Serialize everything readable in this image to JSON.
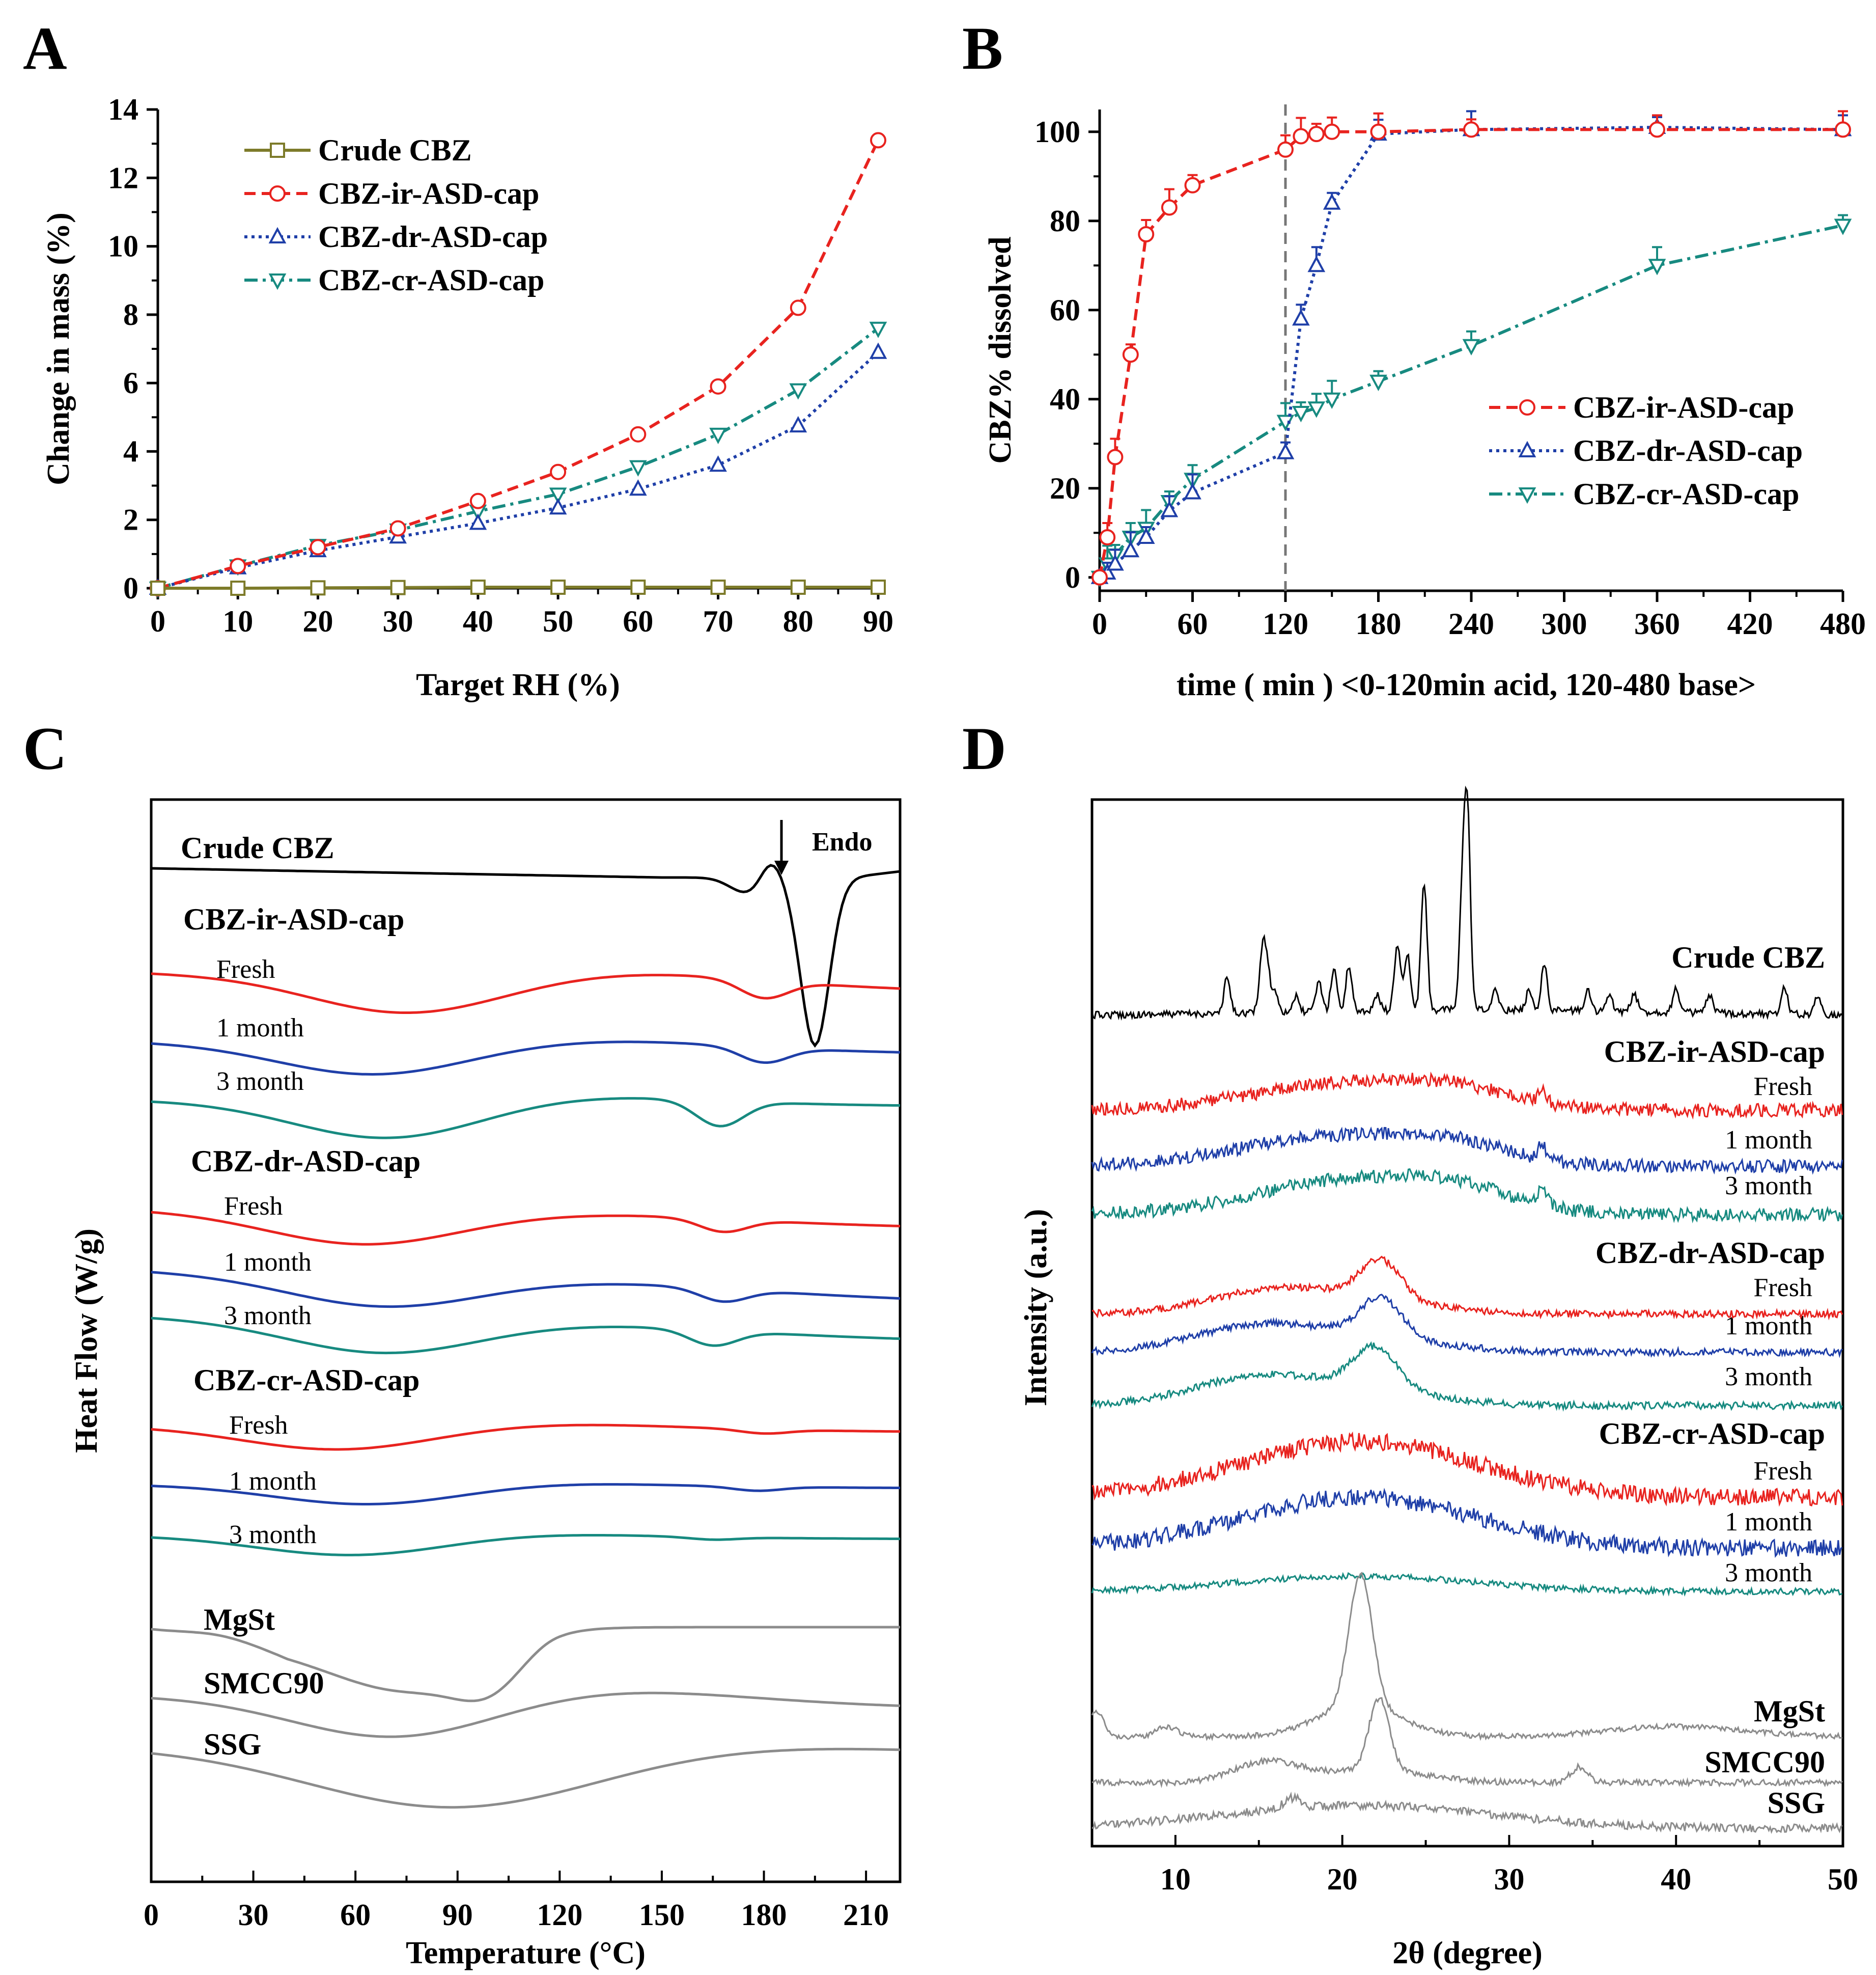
{
  "chart_data": [
    {
      "panel": "A",
      "type": "line",
      "xlabel": "Target RH (%)",
      "ylabel": "Change in mass (%)",
      "xlim": [
        0,
        90
      ],
      "ylim": [
        0,
        14
      ],
      "xticks": [
        "0",
        "10",
        "20",
        "30",
        "40",
        "50",
        "60",
        "70",
        "80",
        "90"
      ],
      "yticks": [
        "0",
        "2",
        "4",
        "6",
        "8",
        "10",
        "12",
        "14"
      ],
      "x": [
        0,
        10,
        20,
        30,
        40,
        50,
        60,
        70,
        80,
        90
      ],
      "legend_position": "top-left",
      "series": [
        {
          "name": "Crude CBZ",
          "color": "#7d7b2a",
          "style": "solid",
          "marker": "square",
          "values": [
            0,
            0,
            0.01,
            0.02,
            0.03,
            0.03,
            0.03,
            0.03,
            0.03,
            0.03
          ]
        },
        {
          "name": "CBZ-ir-ASD-cap",
          "color": "#e8231f",
          "style": "dash",
          "marker": "circle",
          "values": [
            0,
            0.65,
            1.2,
            1.75,
            2.55,
            3.4,
            4.5,
            5.9,
            8.2,
            13.1
          ]
        },
        {
          "name": "CBZ-dr-ASD-cap",
          "color": "#1f3fa8",
          "style": "dot",
          "marker": "triangle-up",
          "values": [
            0,
            0.6,
            1.1,
            1.5,
            1.9,
            2.35,
            2.9,
            3.6,
            4.75,
            6.9
          ]
        },
        {
          "name": "CBZ-cr-ASD-cap",
          "color": "#178a80",
          "style": "dashdot",
          "marker": "triangle-down",
          "values": [
            0,
            0.65,
            1.25,
            1.7,
            2.25,
            2.75,
            3.55,
            4.5,
            5.8,
            7.6
          ]
        }
      ]
    },
    {
      "panel": "B",
      "type": "line",
      "xlabel": "time ( min ) <0-120min acid, 120-480 base>",
      "ylabel": "CBZ% dissolved",
      "xlim": [
        0,
        480
      ],
      "ylim": [
        0,
        100
      ],
      "xticks": [
        "0",
        "60",
        "120",
        "180",
        "240",
        "300",
        "360",
        "420",
        "480"
      ],
      "yticks": [
        "0",
        "20",
        "40",
        "60",
        "80",
        "100"
      ],
      "divider_x": 120,
      "legend_position": "bottom-right",
      "series": [
        {
          "name": "CBZ-ir-ASD-cap",
          "color": "#e8231f",
          "style": "dash",
          "marker": "circle",
          "x": [
            0,
            5,
            10,
            20,
            30,
            45,
            60,
            120,
            130,
            140,
            150,
            180,
            240,
            360,
            480
          ],
          "values": [
            0,
            9,
            27,
            50,
            77,
            83,
            88,
            96,
            99,
            99.5,
            100,
            100,
            100.5,
            100.5,
            100.5
          ]
        },
        {
          "name": "CBZ-dr-ASD-cap",
          "color": "#1f3fa8",
          "style": "dot",
          "marker": "triangle-up",
          "x": [
            0,
            5,
            10,
            20,
            30,
            45,
            60,
            120,
            130,
            140,
            150,
            180,
            240,
            360,
            480
          ],
          "values": [
            0,
            1,
            3,
            6,
            9,
            15,
            19,
            28,
            58,
            70,
            84,
            99.5,
            100.5,
            101,
            100.5
          ]
        },
        {
          "name": "CBZ-cr-ASD-cap",
          "color": "#178a80",
          "style": "dashdot",
          "marker": "triangle-down",
          "x": [
            0,
            5,
            10,
            20,
            30,
            45,
            60,
            120,
            130,
            140,
            150,
            180,
            240,
            360,
            480
          ],
          "values": [
            0,
            3,
            5,
            9,
            11,
            17,
            22,
            35,
            37,
            38,
            40,
            44,
            52,
            70,
            79
          ]
        }
      ]
    },
    {
      "panel": "C",
      "type": "line",
      "xlabel": "Temperature (°C)",
      "ylabel": "Heat Flow (W/g)",
      "xlim": [
        0,
        220
      ],
      "xticks": [
        "0",
        "30",
        "60",
        "90",
        "120",
        "150",
        "180",
        "210"
      ],
      "annotation": "Endo",
      "groups": [
        "Crude CBZ",
        "CBZ-ir-ASD-cap",
        "CBZ-dr-ASD-cap",
        "CBZ-cr-ASD-cap",
        "MgSt",
        "SMCC90",
        "SSG"
      ],
      "conditions": [
        "Fresh",
        "1 month",
        "3 month"
      ],
      "series_colors": {
        "crude": "#000000",
        "fresh": "#e8231f",
        "one_month": "#1f3fa8",
        "three_month": "#178a80",
        "excipient": "#8c8c8c"
      }
    },
    {
      "panel": "D",
      "type": "line",
      "xlabel": "2θ (degree)",
      "ylabel": "Intensity (a.u.)",
      "xlim": [
        5,
        50
      ],
      "xticks": [
        "10",
        "20",
        "30",
        "40",
        "50"
      ],
      "groups": [
        "Crude CBZ",
        "CBZ-ir-ASD-cap",
        "CBZ-dr-ASD-cap",
        "CBZ-cr-ASD-cap",
        "MgSt",
        "SMCC90",
        "SSG"
      ],
      "conditions": [
        "Fresh",
        "1 month",
        "3 month"
      ],
      "crude_peaks_2theta": [
        13.1,
        15.2,
        15.5,
        18.6,
        19.5,
        20.4,
        23.3,
        24.9,
        27.2,
        27.5,
        32.1
      ]
    }
  ],
  "panel_labels": [
    "A",
    "B",
    "C",
    "D"
  ],
  "labels": {
    "C_crude": "Crude CBZ",
    "C_ir": "CBZ-ir-ASD-cap",
    "C_dr": "CBZ-dr-ASD-cap",
    "C_cr": "CBZ-cr-ASD-cap",
    "C_mgst": "MgSt",
    "C_smcc": "SMCC90",
    "C_ssg": "SSG",
    "C_endo": "Endo",
    "D_crude": "Crude CBZ",
    "D_ir": "CBZ-ir-ASD-cap",
    "D_dr": "CBZ-dr-ASD-cap",
    "D_cr": "CBZ-cr-ASD-cap",
    "D_mgst": "MgSt",
    "D_smcc": "SMCC90",
    "D_ssg": "SSG",
    "fresh": "Fresh",
    "one_month": "1 month",
    "three_month": "3 month"
  }
}
